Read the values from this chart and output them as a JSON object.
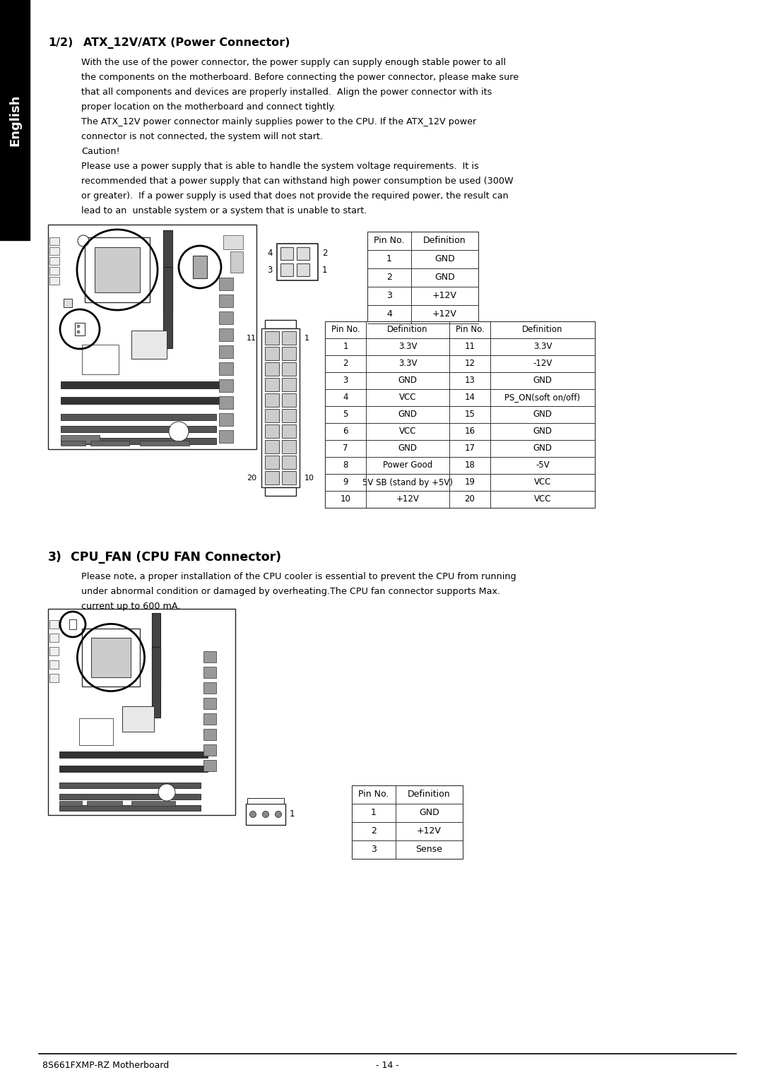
{
  "page_bg": "#ffffff",
  "sidebar_bg": "#000000",
  "sidebar_text": "English",
  "sidebar_text_color": "#ffffff",
  "title1_num": "1/2)",
  "title1_text": "ATX_12V/ATX (Power Connector)",
  "body1_lines": [
    "With the use of the power connector, the power supply can supply enough stable power to all",
    "the components on the motherboard. Before connecting the power connector, please make sure",
    "that all components and devices are properly installed.  Align the power connector with its",
    "proper location on the motherboard and connect tightly.",
    "The ATX_12V power connector mainly supplies power to the CPU. If the ATX_12V power",
    "connector is not connected, the system will not start.",
    "Caution!",
    "Please use a power supply that is able to handle the system voltage requirements.  It is",
    "recommended that a power supply that can withstand high power consumption be used (300W",
    "or greater).  If a power supply is used that does not provide the required power, the result can",
    "lead to an  unstable system or a system that is unable to start."
  ],
  "atx12v_table_headers": [
    "Pin No.",
    "Definition"
  ],
  "atx12v_table": [
    [
      "1",
      "GND"
    ],
    [
      "2",
      "GND"
    ],
    [
      "3",
      "+12V"
    ],
    [
      "4",
      "+12V"
    ]
  ],
  "atx_table_headers_left": [
    "Pin No.",
    "Definition"
  ],
  "atx_table_headers_right": [
    "Pin No.",
    "Definition"
  ],
  "atx_table": [
    [
      "1",
      "3.3V",
      "11",
      "3.3V"
    ],
    [
      "2",
      "3.3V",
      "12",
      "-12V"
    ],
    [
      "3",
      "GND",
      "13",
      "GND"
    ],
    [
      "4",
      "VCC",
      "14",
      "PS_ON(soft on/off)"
    ],
    [
      "5",
      "GND",
      "15",
      "GND"
    ],
    [
      "6",
      "VCC",
      "16",
      "GND"
    ],
    [
      "7",
      "GND",
      "17",
      "GND"
    ],
    [
      "8",
      "Power Good",
      "18",
      "-5V"
    ],
    [
      "9",
      "5V SB (stand by +5V)",
      "19",
      "VCC"
    ],
    [
      "10",
      "+12V",
      "20",
      "VCC"
    ]
  ],
  "title2_num": "3)",
  "title2_text": "CPU_FAN (CPU FAN Connector)",
  "body2_lines": [
    "Please note, a proper installation of the CPU cooler is essential to prevent the CPU from running",
    "under abnormal condition or damaged by overheating.The CPU fan connector supports Max.",
    "current up to 600 mA."
  ],
  "cpufan_table_headers": [
    "Pin No.",
    "Definition"
  ],
  "cpufan_table": [
    [
      "1",
      "GND"
    ],
    [
      "2",
      "+12V"
    ],
    [
      "3",
      "Sense"
    ]
  ],
  "footer_left": "8S661FXMP-RZ Motherboard",
  "footer_center": "- 14 -"
}
